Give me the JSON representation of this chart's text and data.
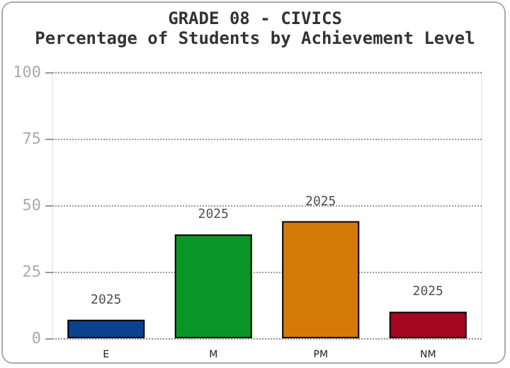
{
  "chart_data": {
    "type": "bar",
    "title": "GRADE 08 - CIVICS",
    "subtitle": "Percentage of Students by Achievement Level",
    "categories": [
      "E",
      "M",
      "PM",
      "NM"
    ],
    "values": [
      7,
      39,
      44,
      10
    ],
    "colors": [
      "#0a428e",
      "#0a9626",
      "#d57a06",
      "#a50620"
    ],
    "annotations": [
      {
        "text": "2025",
        "x": "E",
        "y": 7
      },
      {
        "text": "2025",
        "x": "M",
        "y": 39
      },
      {
        "text": "2025",
        "x": "PM",
        "y": 44
      },
      {
        "text": "2025",
        "x": "NM",
        "y": 10
      }
    ],
    "ylim": [
      0,
      100
    ],
    "yticks": [
      0,
      25,
      50,
      75,
      100
    ],
    "grid": "y"
  }
}
